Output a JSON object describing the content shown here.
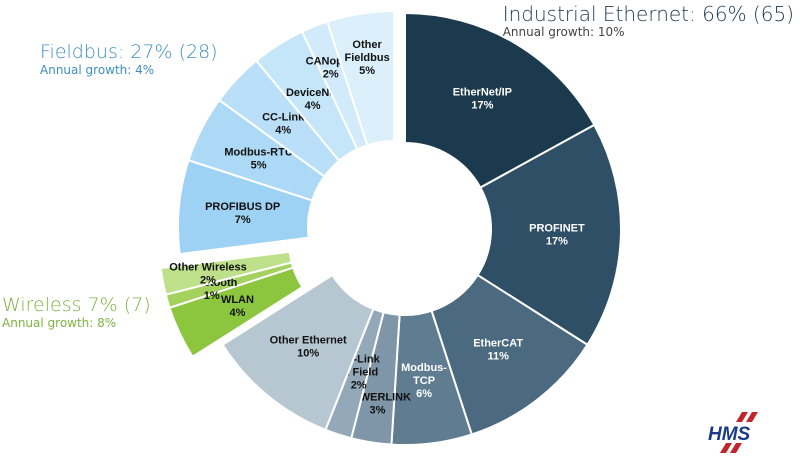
{
  "groups": {
    "industrial_ethernet": {
      "title": "Industrial Ethernet: 66% (65)",
      "growth": "Annual growth: 10%",
      "color": "#1f3a4d"
    },
    "fieldbus": {
      "title": "Fieldbus: 27% (28)",
      "growth": "Annual growth: 4%",
      "color": "#3f8fc0"
    },
    "wireless": {
      "title": "Wireless 7% (7)",
      "growth": "Annual growth: 8%",
      "color": "#7cb342"
    }
  },
  "chart_data": {
    "type": "pie",
    "variant": "donut",
    "series": [
      {
        "values": [
          17,
          17,
          11,
          6,
          3,
          2,
          10,
          4,
          1,
          2,
          7,
          5,
          4,
          4,
          2,
          5
        ]
      }
    ],
    "categories": [
      "EtherNet/IP",
      "PROFINET",
      "EtherCAT",
      "Modbus-TCP",
      "POWERLINK",
      "CC-Link IE Field",
      "Other Ethernet",
      "WLAN",
      "Bluetooth",
      "Other Wireless",
      "PROFIBUS DP",
      "Modbus-RTU",
      "CC-Link",
      "DeviceNet",
      "CANopen",
      "Other Fieldbus"
    ],
    "segments": [
      {
        "name": "EtherNet/IP",
        "lines": [
          "EtherNet/IP"
        ],
        "pct": "17%",
        "value": 17,
        "group": "industrial_ethernet",
        "color": "#1c3a4e",
        "text_color": "#ffffff"
      },
      {
        "name": "PROFINET",
        "lines": [
          "PROFINET"
        ],
        "pct": "17%",
        "value": 17,
        "group": "industrial_ethernet",
        "color": "#2e4f65",
        "text_color": "#ffffff"
      },
      {
        "name": "EtherCAT",
        "lines": [
          "EtherCAT"
        ],
        "pct": "11%",
        "value": 11,
        "group": "industrial_ethernet",
        "color": "#4b6a80",
        "text_color": "#ffffff"
      },
      {
        "name": "Modbus-TCP",
        "lines": [
          "Modbus-",
          "TCP"
        ],
        "pct": "6%",
        "value": 6,
        "group": "industrial_ethernet",
        "color": "#5f7c91",
        "text_color": "#ffffff"
      },
      {
        "name": "POWERLINK",
        "lines": [
          "POWERLINK"
        ],
        "pct": "3%",
        "value": 3,
        "group": "industrial_ethernet",
        "color": "#7e96a8",
        "text_color": "#111111"
      },
      {
        "name": "CC-Link IE Field",
        "lines": [
          "CC-Link",
          "IE Field"
        ],
        "pct": "2%",
        "value": 2,
        "group": "industrial_ethernet",
        "color": "#93a8b8",
        "text_color": "#111111"
      },
      {
        "name": "Other Ethernet",
        "lines": [
          "Other Ethernet"
        ],
        "pct": "10%",
        "value": 10,
        "group": "industrial_ethernet",
        "color": "#b7c7d2",
        "text_color": "#111111"
      },
      {
        "name": "WLAN",
        "lines": [
          "WLAN"
        ],
        "pct": "4%",
        "value": 4,
        "group": "wireless",
        "color": "#8cc63f",
        "text_color": "#111111"
      },
      {
        "name": "Bluetooth",
        "lines": [
          "Bluetooth"
        ],
        "pct": "1%",
        "value": 1,
        "group": "wireless",
        "color": "#a5d25f",
        "text_color": "#111111"
      },
      {
        "name": "Other Wireless",
        "lines": [
          "Other Wireless"
        ],
        "pct": "2%",
        "value": 2,
        "group": "wireless",
        "color": "#bfe08a",
        "text_color": "#111111"
      },
      {
        "name": "PROFIBUS DP",
        "lines": [
          "PROFIBUS DP"
        ],
        "pct": "7%",
        "value": 7,
        "group": "fieldbus",
        "color": "#9dd2f4",
        "text_color": "#111111"
      },
      {
        "name": "Modbus-RTU",
        "lines": [
          "Modbus-RTU"
        ],
        "pct": "5%",
        "value": 5,
        "group": "fieldbus",
        "color": "#acdaf6",
        "text_color": "#111111"
      },
      {
        "name": "CC-Link",
        "lines": [
          "CC-Link"
        ],
        "pct": "4%",
        "value": 4,
        "group": "fieldbus",
        "color": "#b9e0f8",
        "text_color": "#111111"
      },
      {
        "name": "DeviceNet",
        "lines": [
          "DeviceNet"
        ],
        "pct": "4%",
        "value": 4,
        "group": "fieldbus",
        "color": "#c5e6f9",
        "text_color": "#111111"
      },
      {
        "name": "CANopen",
        "lines": [
          "CANopen"
        ],
        "pct": "2%",
        "value": 2,
        "group": "fieldbus",
        "color": "#d1ebfa",
        "text_color": "#111111"
      },
      {
        "name": "Other Fieldbus",
        "lines": [
          "Other",
          "Fieldbus"
        ],
        "pct": "5%",
        "value": 5,
        "group": "fieldbus",
        "color": "#dcf0fb",
        "text_color": "#111111"
      }
    ]
  },
  "logo": {
    "text": "HMS",
    "icon": "hms-logo-icon",
    "color": "#1a3a8a",
    "accent": "#c0272d"
  }
}
